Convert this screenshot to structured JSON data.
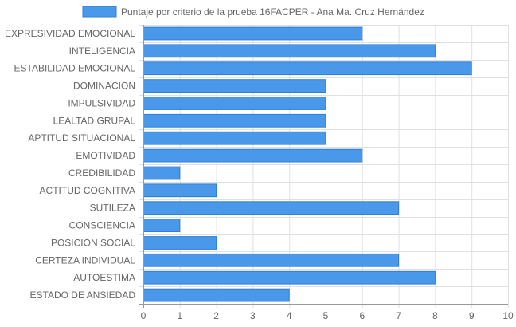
{
  "chart_data": {
    "type": "bar",
    "orientation": "horizontal",
    "categories": [
      "EXPRESIVIDAD EMOCIONAL",
      "INTELIGENCIA",
      "ESTABILIDAD EMOCIONAL",
      "DOMINACIÓN",
      "IMPULSIVIDAD",
      "LEALTAD GRUPAL",
      "APTITUD SITUACIONAL",
      "EMOTIVIDAD",
      "CREDIBILIDAD",
      "ACTITUD COGNITIVA",
      "SUTILEZA",
      "CONSCIENCIA",
      "POSICIÓN SOCIAL",
      "CERTEZA INDIVIDUAL",
      "AUTOESTIMA",
      "ESTADO DE ANSIEDAD"
    ],
    "series": [
      {
        "name": "Puntaje por criterio de la prueba 16FACPER - Ana Ma. Cruz Hernández",
        "values": [
          6,
          8,
          9,
          5,
          5,
          5,
          5,
          6,
          1,
          2,
          7,
          1,
          2,
          7,
          8,
          4
        ],
        "color": "#4a98e9",
        "border_color": "#2f7fd6"
      }
    ],
    "xlim": [
      0,
      10
    ],
    "x_ticks": [
      "0",
      "1",
      "2",
      "3",
      "4",
      "5",
      "6",
      "7",
      "8",
      "9",
      "10"
    ],
    "grid": true,
    "legend_position": "top-center",
    "grid_color": "#e0e0e0",
    "axis_color": "#999999"
  }
}
